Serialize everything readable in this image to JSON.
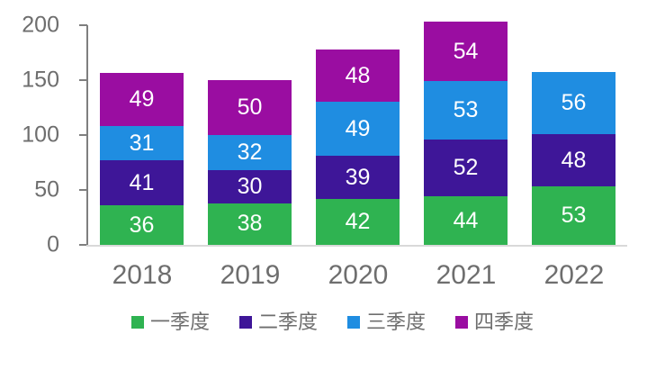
{
  "chart_data": {
    "type": "bar",
    "stacked": true,
    "title": "",
    "xlabel": "",
    "ylabel": "",
    "categories": [
      "2018",
      "2019",
      "2020",
      "2021",
      "2022"
    ],
    "series": [
      {
        "name": "一季度",
        "color": "#2fb351",
        "values": [
          36,
          38,
          42,
          44,
          53
        ]
      },
      {
        "name": "二季度",
        "color": "#3e1698",
        "values": [
          41,
          30,
          39,
          52,
          48
        ]
      },
      {
        "name": "三季度",
        "color": "#1f8de1",
        "values": [
          31,
          32,
          49,
          53,
          56
        ]
      },
      {
        "name": "四季度",
        "color": "#9a0da1",
        "values": [
          49,
          50,
          48,
          54,
          null
        ]
      }
    ],
    "yticks": [
      0,
      50,
      100,
      150,
      200
    ],
    "ylim": [
      0,
      200
    ],
    "grid": false,
    "legend_position": "bottom",
    "value_labels": "inside-center-white",
    "colors": {
      "axis_text": "#6e6e6e",
      "axis_line": "#7f7f7f",
      "baseline": "#d9d9d9",
      "value_label_text": "#ffffff",
      "background": "#ffffff"
    }
  }
}
